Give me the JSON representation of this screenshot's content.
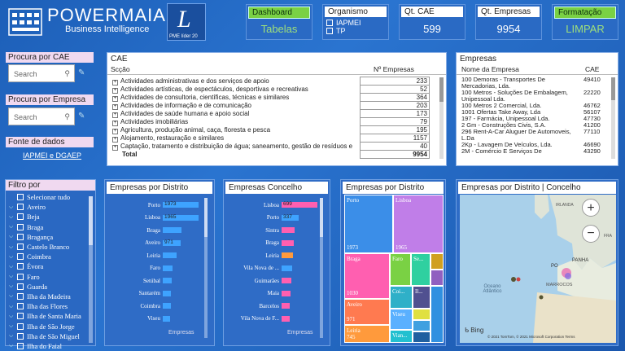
{
  "header": {
    "brand": "POWERMAIA",
    "brand_sub": "Business Intelligence",
    "pme_caption": "PME líder 20",
    "pme_letter": "L",
    "dashboard_label": "Dashboard",
    "dashboard_value": "Tabelas",
    "organismo_label": "Organismo",
    "organismo_options": [
      "IAPMEI",
      "TP"
    ],
    "qt_cae_label": "Qt. CAE",
    "qt_cae_value": "599",
    "qt_empresas_label": "Qt. Empresas",
    "qt_empresas_value": "9954",
    "formatacao_label": "Formatação",
    "formatacao_value": "LIMPAR"
  },
  "left": {
    "procura_cae_label": "Procura por CAE",
    "procura_cae_placeholder": "Search",
    "procura_empresa_label": "Procura por Empresa",
    "procura_empresa_placeholder": "Search",
    "fonte_label": "Fonte de dados",
    "fonte_links": "IAPMEI e DGAEP"
  },
  "cae_table": {
    "title": "CAE",
    "col_seccao": "Scção",
    "col_empresas": "Nº Empresas",
    "rows": [
      {
        "label": "Actividades administrativas e dos serviços de apoio",
        "value": "233"
      },
      {
        "label": "Actividades artísticas, de espectáculos, desportivas e recreativas",
        "value": "52"
      },
      {
        "label": "Actividades de consultoria, científicas, técnicas e similares",
        "value": "364"
      },
      {
        "label": "Actividades de informação e de comunicação",
        "value": "203"
      },
      {
        "label": "Actividades de saúde humana e apoio social",
        "value": "173"
      },
      {
        "label": "Actividades imobiliárias",
        "value": "79"
      },
      {
        "label": "Agricultura, produção animal, caça, floresta e pesca",
        "value": "195"
      },
      {
        "label": "Alojamento, restauração e similares",
        "value": "1157"
      },
      {
        "label": "Captação, tratamento e distribuição de água; saneamento, gestão de resíduos e",
        "value": "40"
      }
    ],
    "total_label": "Total",
    "total_value": "9954"
  },
  "empresas_table": {
    "title": "Empresas",
    "col_nome": "Nome da Empresa",
    "col_cae": "CAE",
    "rows": [
      {
        "nome": "100 Demoras - Transportes De Mercadorias, Lda.",
        "cae": "49410"
      },
      {
        "nome": "100 Metros - Soluções De Embalagem, Unipessoal Lda.",
        "cae": "22220"
      },
      {
        "nome": "100 Metros 2 Comercial, Lda.",
        "cae": "46762"
      },
      {
        "nome": "1001 Ofertas Take Away, Lda",
        "cae": "56107"
      },
      {
        "nome": "197 - Farmácia, Unipessoal Lda.",
        "cae": "47730"
      },
      {
        "nome": "2 Gm - Construções Civis, S.A.",
        "cae": "41200"
      },
      {
        "nome": "296 Rent-A-Car Aluguer De Automoveis, L.Da",
        "cae": "77110"
      },
      {
        "nome": "2Kp - Lavagem De Veículos, Lda.",
        "cae": "46690"
      },
      {
        "nome": "2M - Comércio E Serviços De",
        "cae": "43290"
      }
    ]
  },
  "filtro": {
    "title": "Filtro por",
    "items": [
      "Selecionar tudo",
      "Aveiro",
      "Beja",
      "Braga",
      "Bragança",
      "Castelo Branco",
      "Coimbra",
      "Évora",
      "Faro",
      "Guarda",
      "Ilha da Madeira",
      "Ilha das Flores",
      "Ilha de Santa Maria",
      "Ilha de São Jorge",
      "Ilha de São Miguel",
      "Ilha do Faial"
    ]
  },
  "distrito_chart": {
    "title": "Empresas por Distrito",
    "axis_caption": "Empresas",
    "color": "#3ea3ff",
    "max": 1973,
    "rows": [
      {
        "label": "Porto",
        "value": 1973,
        "text": "1973"
      },
      {
        "label": "Lisboa",
        "value": 1965,
        "text": "1965"
      },
      {
        "label": "Braga",
        "value": 1030,
        "text": ""
      },
      {
        "label": "Aveiro",
        "value": 971,
        "text": "971"
      },
      {
        "label": "Leiria",
        "value": 745,
        "text": ""
      },
      {
        "label": "Faro",
        "value": 560,
        "text": ""
      },
      {
        "label": "Setúbal",
        "value": 500,
        "text": ""
      },
      {
        "label": "Santarém",
        "value": 470,
        "text": ""
      },
      {
        "label": "Coimbra",
        "value": 440,
        "text": ""
      },
      {
        "label": "Viseu",
        "value": 420,
        "text": ""
      }
    ]
  },
  "concelho_chart": {
    "title": "Empresas Concelho",
    "axis_caption": "Empresas",
    "color": "#ff5fb0",
    "max": 699,
    "rows": [
      {
        "label": "Lisboa",
        "value": 699,
        "text": "699",
        "color": "#ff5fb0"
      },
      {
        "label": "Porto",
        "value": 337,
        "text": "337",
        "color": "#3ea3ff"
      },
      {
        "label": "Sintra",
        "value": 250,
        "text": "",
        "color": "#ff5fb0"
      },
      {
        "label": "Braga",
        "value": 240,
        "text": "",
        "color": "#ff5fb0"
      },
      {
        "label": "Leiria",
        "value": 225,
        "text": "",
        "color": "#ff9a3c"
      },
      {
        "label": "Vila Nova de ...",
        "value": 210,
        "text": "",
        "color": "#3ea3ff"
      },
      {
        "label": "Guimarães",
        "value": 190,
        "text": "",
        "color": "#ff5fb0"
      },
      {
        "label": "Maia",
        "value": 175,
        "text": "",
        "color": "#ff5fb0"
      },
      {
        "label": "Barcelos",
        "value": 165,
        "text": "",
        "color": "#ff5fb0"
      },
      {
        "label": "Vila Nova de F...",
        "value": 155,
        "text": "",
        "color": "#ff5fb0"
      }
    ]
  },
  "treemap": {
    "title": "Empresas por Distrito",
    "tiles": [
      {
        "label": "Porto",
        "value": "1973",
        "color": "#3b8ee8"
      },
      {
        "label": "Lisboa",
        "value": "1965",
        "color": "#c07ee8"
      },
      {
        "label": "Braga",
        "value": "1030",
        "color": "#ff5fb0"
      },
      {
        "label": "Faro",
        "value": "",
        "color": "#7ad144"
      },
      {
        "label": "Se...",
        "value": "",
        "color": "#2fd0a0"
      },
      {
        "label": "Aveiro",
        "value": "971",
        "color": "#ff7a50"
      },
      {
        "label": "Coi...",
        "value": "",
        "color": "#2fb0c8"
      },
      {
        "label": "Il...",
        "value": "",
        "color": "#505090"
      },
      {
        "label": "Leiria",
        "value": "745",
        "color": "#ff9a3c"
      },
      {
        "label": "Viseu",
        "value": "",
        "color": "#5ab0ff"
      },
      {
        "label": "Vian...",
        "value": "",
        "color": "#22c0d0"
      }
    ]
  },
  "map": {
    "title": "Empresas por Distrito | Concelho",
    "labels": {
      "irlanda": "IRLANDA",
      "franca": "FRA",
      "espanha": "PANHA",
      "portugal": "PO",
      "marrocos": "MARROCOS",
      "oceano": "Oceano Atlântico"
    },
    "zoom_in": "+",
    "zoom_out": "−",
    "bing": "Bing",
    "copyright": "© 2021 TomTom, © 2021 Microsoft Corporation  Terms"
  }
}
